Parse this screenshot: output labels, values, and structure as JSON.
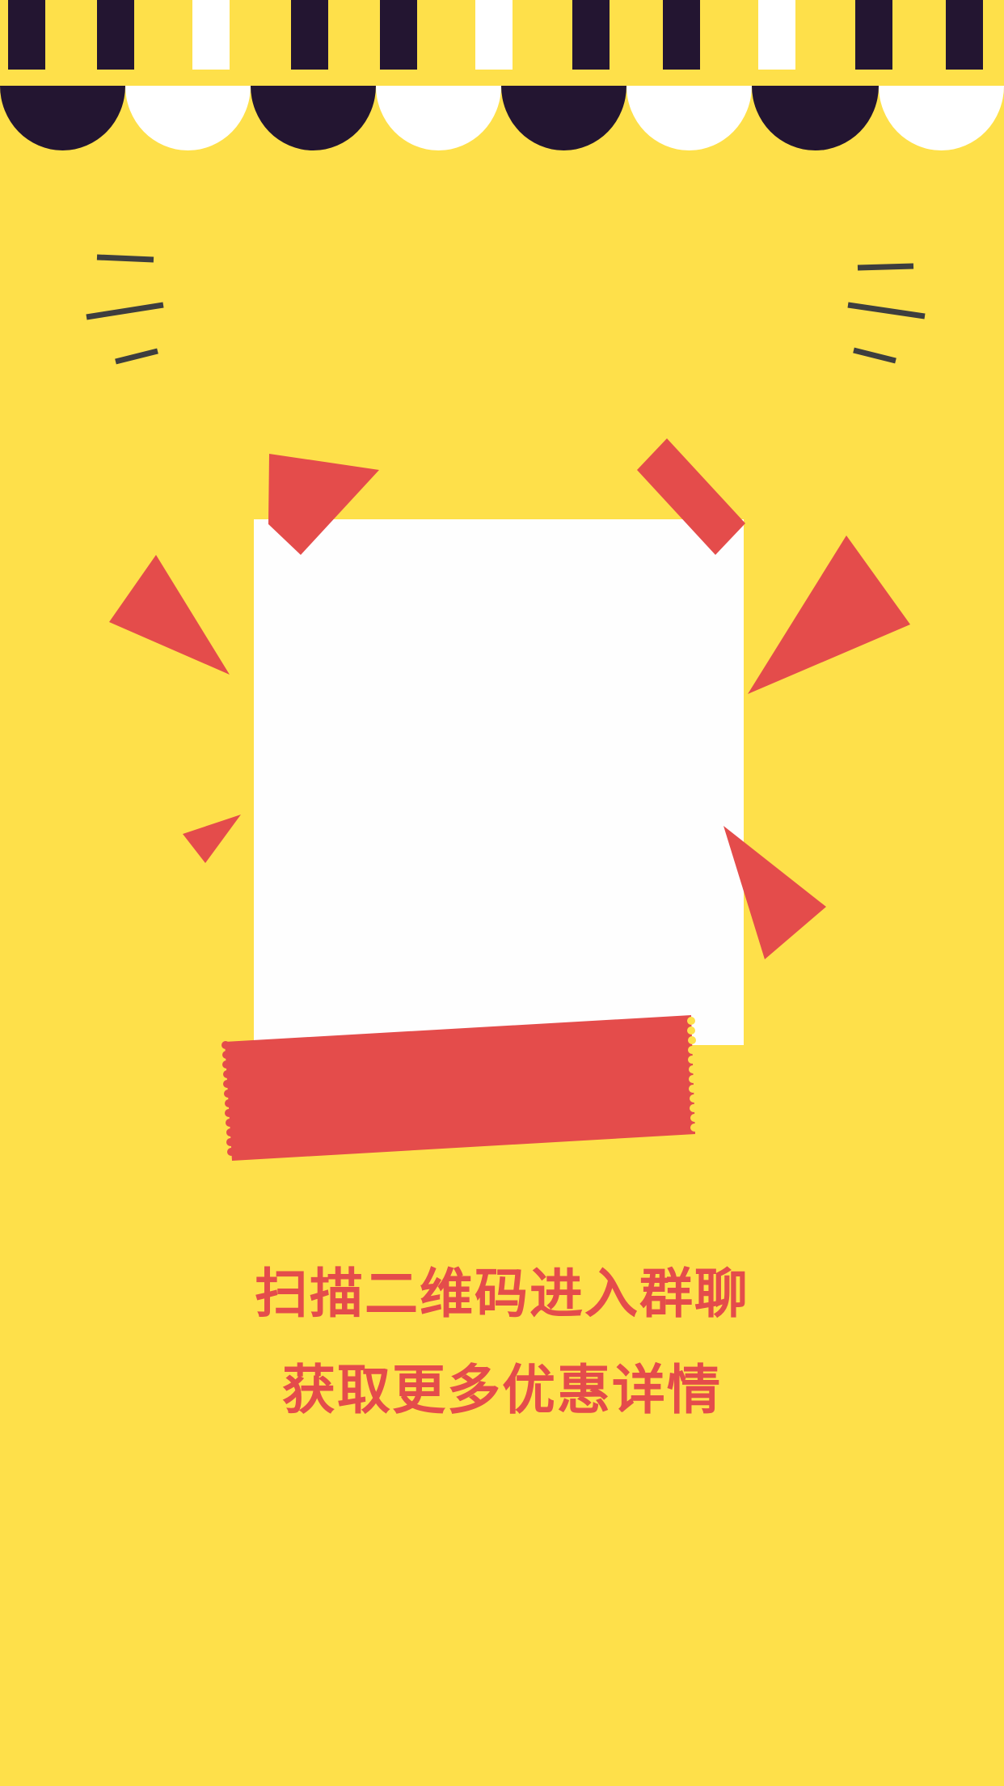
{
  "caption": {
    "line1": "扫描二维码进入群聊",
    "line2": "获取更多优惠详情"
  },
  "colors": {
    "background": "#FEE04A",
    "awning_dark": "#231531",
    "awning_light": "#FFFFFF",
    "accent_red": "#E44C4B",
    "dash_gray": "#3E3E3E",
    "card_white": "#FEFEFE"
  }
}
